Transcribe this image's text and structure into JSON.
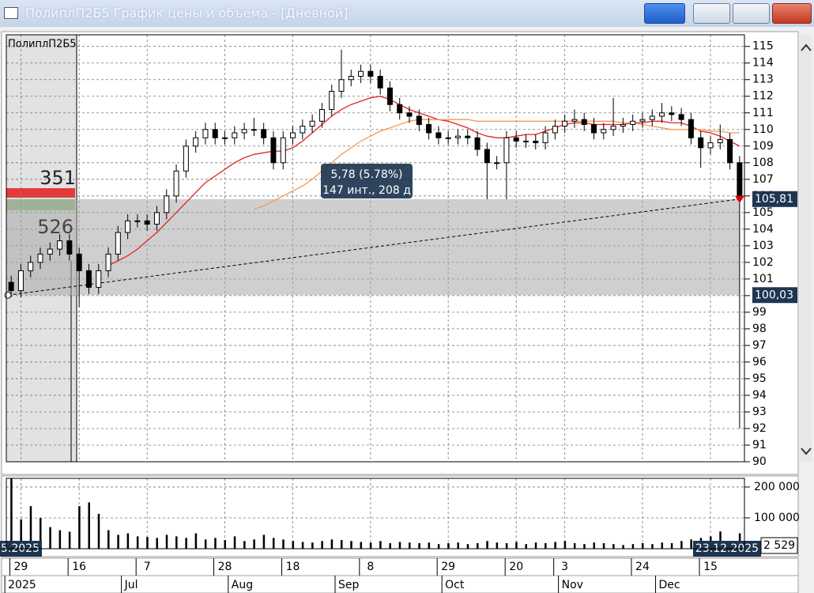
{
  "window": {
    "title": "ПолиплП2Б5 График цены и объёма - [Дневной]"
  },
  "chart_data": [
    {
      "type": "candlestick",
      "label": "ПолиплП2Б5",
      "categories": [
        null,
        "29",
        null,
        null,
        null,
        null,
        null,
        "16",
        null,
        null,
        null,
        null,
        null,
        null,
        "7",
        null,
        null,
        null,
        null,
        null,
        null,
        null,
        "28",
        null,
        null,
        null,
        null,
        null,
        null,
        "18",
        null,
        null,
        null,
        null,
        null,
        null,
        null,
        "8",
        null,
        null,
        null,
        null,
        null,
        null,
        null,
        "29",
        null,
        null,
        null,
        null,
        null,
        null,
        "20",
        null,
        null,
        null,
        null,
        "3",
        null,
        null,
        null,
        null,
        null,
        null,
        null,
        "24",
        null,
        null,
        null,
        null,
        null,
        null,
        "15",
        null,
        null,
        null
      ],
      "months": [
        "2025",
        null,
        null,
        null,
        null,
        null,
        null,
        null,
        null,
        null,
        null,
        null,
        "Jul",
        null,
        null,
        null,
        null,
        null,
        null,
        null,
        null,
        null,
        null,
        "Aug",
        null,
        null,
        null,
        null,
        null,
        null,
        null,
        null,
        null,
        null,
        "Sep",
        null,
        null,
        null,
        null,
        null,
        null,
        null,
        null,
        null,
        null,
        "Oct",
        null,
        null,
        null,
        null,
        null,
        null,
        null,
        null,
        null,
        null,
        null,
        "Nov",
        null,
        null,
        null,
        null,
        null,
        null,
        null,
        null,
        null,
        "Dec",
        null,
        null,
        null,
        null,
        null,
        null,
        null,
        null
      ],
      "open": [
        100.8,
        100.3,
        101.5,
        102.0,
        102.5,
        102.8,
        103.3,
        102.5,
        101.5,
        100.5,
        101.5,
        102.5,
        103.8,
        104.5,
        104.5,
        104.3,
        105.0,
        106.0,
        107.5,
        109.0,
        109.5,
        110.0,
        109.5,
        109.5,
        109.8,
        110.0,
        110.0,
        109.5,
        108.0,
        109.5,
        109.8,
        110.2,
        110.5,
        111.2,
        112.3,
        113.0,
        113.2,
        113.5,
        113.2,
        112.5,
        111.5,
        111.0,
        110.8,
        110.3,
        109.8,
        109.5,
        109.5,
        109.6,
        109.5,
        108.8,
        108.0,
        108.0,
        109.5,
        109.3,
        109.3,
        109.2,
        109.8,
        110.2,
        110.5,
        110.6,
        110.3,
        109.8,
        110.0,
        110.2,
        110.3,
        110.5,
        110.6,
        110.8,
        111.0,
        110.9,
        110.6,
        109.5,
        108.9,
        109.2,
        109.4,
        108.0
      ],
      "high": [
        101.2,
        101.9,
        102.4,
        102.9,
        103.2,
        103.7,
        103.7,
        102.9,
        101.9,
        101.9,
        102.9,
        104.2,
        104.9,
        104.9,
        104.9,
        105.4,
        106.4,
        107.9,
        109.4,
        109.9,
        110.4,
        110.4,
        109.9,
        110.2,
        110.4,
        110.7,
        110.4,
        109.9,
        109.9,
        110.2,
        110.6,
        110.9,
        111.6,
        112.7,
        114.8,
        113.6,
        113.9,
        113.9,
        113.6,
        112.9,
        111.9,
        111.4,
        111.2,
        110.7,
        110.2,
        109.9,
        110.0,
        110.0,
        109.9,
        109.2,
        108.4,
        109.9,
        109.9,
        109.7,
        109.7,
        110.2,
        110.6,
        110.9,
        111.2,
        111.0,
        110.7,
        110.4,
        111.9,
        110.7,
        110.9,
        111.0,
        111.2,
        111.6,
        111.4,
        111.3,
        111.0,
        109.9,
        109.6,
        110.3,
        109.8,
        108.4
      ],
      "low": [
        99.9,
        99.9,
        101.1,
        101.6,
        102.1,
        102.4,
        102.1,
        99.3,
        100.1,
        100.1,
        101.1,
        102.1,
        103.4,
        104.1,
        103.9,
        103.9,
        104.6,
        105.6,
        107.1,
        108.6,
        109.1,
        109.1,
        109.1,
        109.1,
        109.4,
        109.6,
        109.1,
        107.6,
        107.6,
        109.1,
        109.4,
        109.8,
        110.1,
        110.8,
        111.9,
        112.6,
        112.8,
        112.8,
        112.1,
        111.1,
        110.6,
        110.4,
        109.9,
        109.4,
        109.1,
        109.1,
        109.1,
        109.1,
        108.4,
        105.8,
        107.6,
        105.8,
        108.9,
        108.9,
        108.8,
        108.8,
        109.4,
        109.8,
        110.1,
        109.9,
        109.4,
        109.4,
        109.6,
        109.8,
        109.9,
        110.1,
        110.2,
        110.4,
        110.5,
        110.2,
        109.1,
        107.7,
        108.5,
        108.8,
        107.6,
        92.0
      ],
      "close": [
        100.3,
        101.5,
        102.0,
        102.5,
        102.8,
        103.3,
        102.5,
        101.5,
        100.5,
        101.5,
        102.5,
        103.8,
        104.5,
        104.5,
        104.3,
        105.0,
        106.0,
        107.5,
        109.0,
        109.5,
        110.0,
        109.5,
        109.5,
        109.8,
        110.0,
        110.0,
        109.5,
        108.0,
        109.5,
        109.8,
        110.2,
        110.5,
        111.2,
        112.3,
        113.0,
        113.2,
        113.5,
        113.2,
        112.5,
        111.5,
        111.0,
        110.8,
        110.3,
        109.8,
        109.5,
        109.5,
        109.6,
        109.5,
        108.8,
        108.0,
        108.0,
        109.5,
        109.3,
        109.3,
        109.2,
        109.8,
        110.2,
        110.5,
        110.6,
        110.3,
        109.8,
        110.0,
        110.2,
        110.3,
        110.5,
        110.6,
        110.8,
        111.0,
        110.9,
        110.6,
        109.5,
        108.9,
        109.2,
        109.4,
        108.0,
        105.8
      ],
      "overlays": [
        {
          "color": "#e52222",
          "values": [
            null,
            null,
            null,
            null,
            null,
            null,
            null,
            null,
            null,
            null,
            101.8,
            102.1,
            102.4,
            102.8,
            103.3,
            103.8,
            104.4,
            105.0,
            105.6,
            106.2,
            106.8,
            107.2,
            107.6,
            108.0,
            108.3,
            108.5,
            108.6,
            108.7,
            108.7,
            108.9,
            109.3,
            109.8,
            110.3,
            110.8,
            111.2,
            111.5,
            111.7,
            111.9,
            112.0,
            111.8,
            111.5,
            111.2,
            111.0,
            110.8,
            110.6,
            110.5,
            110.3,
            110.1,
            109.8,
            109.6,
            109.5,
            109.5,
            109.6,
            109.7,
            109.7,
            109.9,
            110.1,
            110.3,
            110.4,
            110.4,
            110.3,
            110.3,
            110.3,
            110.3,
            110.4,
            110.4,
            110.5,
            110.5,
            110.4,
            110.4,
            110.2,
            109.9,
            109.8,
            109.6,
            109.3,
            109.0
          ]
        },
        {
          "color": "#f39a55",
          "values": [
            null,
            null,
            null,
            null,
            null,
            null,
            null,
            null,
            null,
            null,
            null,
            null,
            null,
            null,
            null,
            null,
            null,
            null,
            null,
            null,
            null,
            null,
            null,
            null,
            null,
            105.2,
            105.4,
            105.7,
            106.0,
            106.3,
            106.6,
            107.0,
            107.5,
            108.0,
            108.5,
            108.9,
            109.3,
            109.6,
            109.9,
            110.1,
            110.3,
            110.5,
            110.6,
            110.6,
            110.6,
            110.6,
            110.6,
            110.6,
            110.5,
            110.5,
            110.5,
            110.5,
            110.5,
            110.5,
            110.5,
            110.5,
            110.5,
            110.5,
            110.5,
            110.5,
            110.5,
            110.5,
            110.5,
            110.4,
            110.4,
            110.3,
            110.2,
            110.1,
            110.0,
            110.0,
            110.0,
            110.0,
            109.9,
            109.9,
            109.8,
            109.8
          ]
        }
      ],
      "ylim": [
        90,
        115.7
      ],
      "yticks": [
        90,
        91,
        92,
        93,
        94,
        95,
        96,
        97,
        98,
        99,
        100,
        101,
        102,
        103,
        104,
        105,
        106,
        107,
        108,
        109,
        110,
        111,
        112,
        113,
        114,
        115
      ],
      "grid": true,
      "band": {
        "low": {
          "value": 100.03,
          "label": "100,03"
        },
        "high": {
          "value": 105.81,
          "label": "105,81"
        }
      },
      "tooltip": [
        "5,78 (5.78%)",
        "147 инт., 208 д"
      ],
      "profile_labels": [
        "351",
        "526"
      ]
    },
    {
      "type": "bar",
      "values": [
        228000,
        95000,
        138000,
        100000,
        70000,
        60000,
        55000,
        138000,
        150000,
        113000,
        60000,
        45000,
        50000,
        40000,
        38000,
        35000,
        45000,
        40000,
        35000,
        50000,
        30000,
        35000,
        28000,
        40000,
        25000,
        30000,
        45000,
        35000,
        30000,
        25000,
        22000,
        20000,
        25000,
        30000,
        28000,
        25000,
        22000,
        20000,
        25000,
        18000,
        22000,
        20000,
        18000,
        20000,
        15000,
        18000,
        20000,
        15000,
        18000,
        25000,
        20000,
        18000,
        22000,
        15000,
        20000,
        18000,
        22000,
        25000,
        18000,
        15000,
        20000,
        18000,
        15000,
        12000,
        15000,
        18000,
        15000,
        20000,
        18000,
        25000,
        30000,
        35000,
        40000,
        56000,
        20000,
        50000
      ],
      "color": "#000000",
      "ylim": [
        0,
        228000
      ],
      "yticks": [
        {
          "value": 200000,
          "label": "200 000"
        },
        {
          "value": 100000,
          "label": "100 000"
        }
      ],
      "grid": true,
      "first_date_label": "5.2025",
      "last_date_label": "23.12.2025",
      "last_value_label": "2 529"
    }
  ]
}
